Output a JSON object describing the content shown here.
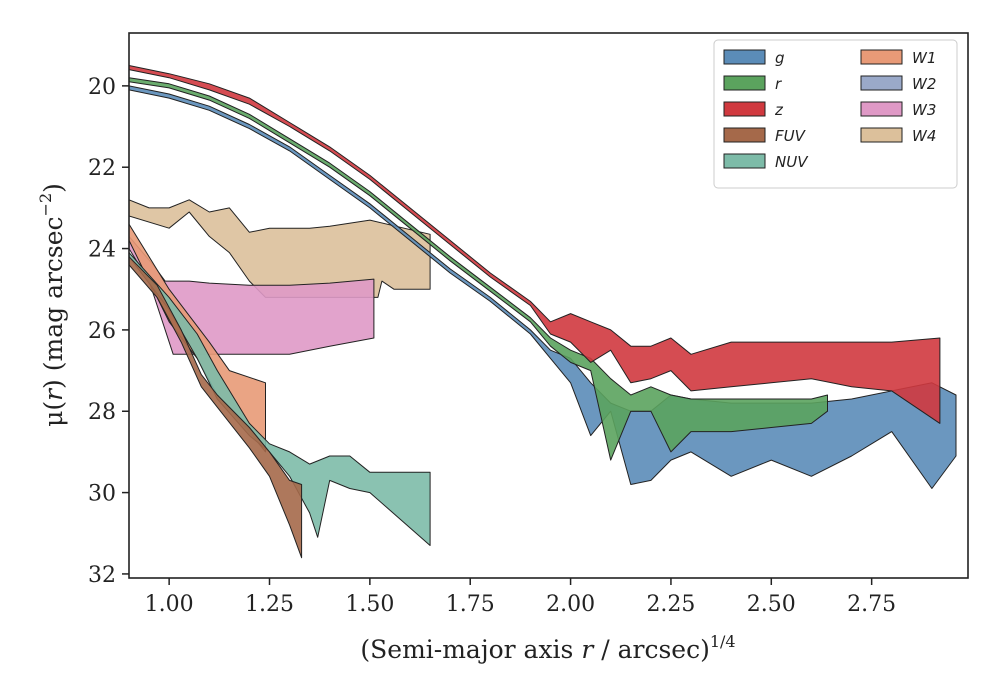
{
  "chart_data": {
    "type": "area",
    "title": "",
    "xlabel": {
      "pre": "(Semi-major axis ",
      "var": "r",
      "post": " / arcsec)",
      "sup": "1/4"
    },
    "ylabel": {
      "pre": "μ(",
      "var": "r",
      "post": ") (mag arcsec",
      "sup": "−2",
      "close": ")"
    },
    "xlim": [
      0.9,
      2.99
    ],
    "ylim": [
      32.1,
      18.7
    ],
    "y_inverted": true,
    "grid": false,
    "legend_position": "top-right",
    "legend_columns": 2,
    "x_ticks": [
      1.0,
      1.25,
      1.5,
      1.75,
      2.0,
      2.25,
      2.5,
      2.75
    ],
    "x_tick_labels": [
      "1.00",
      "1.25",
      "1.50",
      "1.75",
      "2.00",
      "2.25",
      "2.50",
      "2.75"
    ],
    "y_ticks": [
      20,
      22,
      24,
      26,
      28,
      30,
      32
    ],
    "y_tick_labels": [
      "20",
      "22",
      "24",
      "26",
      "28",
      "30",
      "32"
    ],
    "series": [
      {
        "name": "W4",
        "color": "#dcc09b",
        "upper": [
          [
            0.9,
            22.8
          ],
          [
            0.95,
            23.0
          ],
          [
            1.0,
            23.0
          ],
          [
            1.05,
            22.8
          ],
          [
            1.1,
            23.1
          ],
          [
            1.15,
            23.0
          ],
          [
            1.2,
            23.6
          ],
          [
            1.25,
            23.5
          ],
          [
            1.3,
            23.5
          ],
          [
            1.35,
            23.5
          ],
          [
            1.4,
            23.45
          ],
          [
            1.5,
            23.3
          ],
          [
            1.65,
            23.65
          ]
        ],
        "lower": [
          [
            0.9,
            23.2
          ],
          [
            1.0,
            23.5
          ],
          [
            1.05,
            23.1
          ],
          [
            1.1,
            23.7
          ],
          [
            1.15,
            24.1
          ],
          [
            1.2,
            24.8
          ],
          [
            1.24,
            25.2
          ],
          [
            1.3,
            25.2
          ],
          [
            1.35,
            25.2
          ],
          [
            1.4,
            25.2
          ],
          [
            1.48,
            25.2
          ],
          [
            1.52,
            25.2
          ],
          [
            1.53,
            24.8
          ],
          [
            1.56,
            25.0
          ],
          [
            1.65,
            25.0
          ]
        ]
      },
      {
        "name": "W3",
        "color": "#df99c6",
        "upper": [
          [
            0.9,
            23.7
          ],
          [
            0.96,
            24.4
          ],
          [
            0.99,
            24.8
          ],
          [
            1.05,
            24.8
          ],
          [
            1.1,
            24.85
          ],
          [
            1.2,
            24.9
          ],
          [
            1.3,
            24.9
          ],
          [
            1.4,
            24.85
          ],
          [
            1.51,
            24.75
          ]
        ],
        "lower": [
          [
            0.9,
            24.0
          ],
          [
            0.95,
            24.8
          ],
          [
            1.01,
            26.6
          ],
          [
            1.1,
            26.6
          ],
          [
            1.2,
            26.6
          ],
          [
            1.3,
            26.6
          ],
          [
            1.4,
            26.4
          ],
          [
            1.51,
            26.2
          ]
        ]
      },
      {
        "name": "W1",
        "color": "#e89a77",
        "upper": [
          [
            0.9,
            23.4
          ],
          [
            1.0,
            25.0
          ],
          [
            1.1,
            26.3
          ],
          [
            1.15,
            27.0
          ],
          [
            1.24,
            27.3
          ]
        ],
        "lower": [
          [
            0.9,
            23.8
          ],
          [
            1.0,
            25.8
          ],
          [
            1.07,
            26.7
          ],
          [
            1.12,
            27.6
          ],
          [
            1.2,
            28.5
          ],
          [
            1.24,
            29.0
          ]
        ]
      },
      {
        "name": "NUV",
        "color": "#7dbba8",
        "upper": [
          [
            0.9,
            24.1
          ],
          [
            1.0,
            25.2
          ],
          [
            1.07,
            26.1
          ],
          [
            1.12,
            27.0
          ],
          [
            1.2,
            28.3
          ],
          [
            1.25,
            28.8
          ],
          [
            1.3,
            29.0
          ],
          [
            1.35,
            29.3
          ],
          [
            1.4,
            29.1
          ],
          [
            1.45,
            29.1
          ],
          [
            1.5,
            29.5
          ],
          [
            1.65,
            29.5
          ]
        ],
        "lower": [
          [
            0.9,
            24.2
          ],
          [
            1.0,
            25.5
          ],
          [
            1.07,
            26.7
          ],
          [
            1.12,
            27.7
          ],
          [
            1.2,
            28.6
          ],
          [
            1.25,
            29.0
          ],
          [
            1.3,
            29.6
          ],
          [
            1.35,
            30.5
          ],
          [
            1.37,
            31.1
          ],
          [
            1.4,
            29.7
          ],
          [
            1.45,
            29.9
          ],
          [
            1.5,
            30.0
          ],
          [
            1.65,
            31.3
          ]
        ]
      },
      {
        "name": "FUV",
        "color": "#a5694a",
        "upper": [
          [
            0.9,
            24.2
          ],
          [
            0.97,
            24.9
          ],
          [
            1.03,
            26.0
          ],
          [
            1.08,
            27.1
          ],
          [
            1.12,
            27.6
          ],
          [
            1.2,
            28.4
          ],
          [
            1.25,
            29.0
          ],
          [
            1.3,
            29.7
          ],
          [
            1.33,
            29.8
          ]
        ],
        "lower": [
          [
            0.9,
            24.4
          ],
          [
            0.97,
            25.2
          ],
          [
            1.03,
            26.3
          ],
          [
            1.08,
            27.4
          ],
          [
            1.12,
            27.9
          ],
          [
            1.2,
            28.9
          ],
          [
            1.25,
            29.6
          ],
          [
            1.3,
            30.8
          ],
          [
            1.33,
            31.6
          ]
        ]
      },
      {
        "name": "g",
        "color": "#5b8cb8",
        "upper": [
          [
            0.9,
            20.0
          ],
          [
            1.0,
            20.2
          ],
          [
            1.1,
            20.5
          ],
          [
            1.2,
            20.95
          ],
          [
            1.3,
            21.5
          ],
          [
            1.4,
            22.2
          ],
          [
            1.5,
            22.9
          ],
          [
            1.6,
            23.7
          ],
          [
            1.7,
            24.5
          ],
          [
            1.8,
            25.2
          ],
          [
            1.9,
            26.0
          ],
          [
            1.95,
            26.5
          ],
          [
            2.0,
            26.7
          ],
          [
            2.05,
            27.3
          ],
          [
            2.1,
            27.8
          ],
          [
            2.15,
            28.0
          ],
          [
            2.2,
            28.0
          ],
          [
            2.25,
            27.6
          ],
          [
            2.3,
            27.7
          ],
          [
            2.4,
            27.8
          ],
          [
            2.5,
            27.8
          ],
          [
            2.6,
            27.8
          ],
          [
            2.7,
            27.7
          ],
          [
            2.8,
            27.5
          ],
          [
            2.9,
            27.3
          ],
          [
            2.96,
            27.6
          ]
        ],
        "lower": [
          [
            0.9,
            20.1
          ],
          [
            1.0,
            20.3
          ],
          [
            1.1,
            20.6
          ],
          [
            1.2,
            21.05
          ],
          [
            1.3,
            21.6
          ],
          [
            1.4,
            22.3
          ],
          [
            1.5,
            23.0
          ],
          [
            1.6,
            23.8
          ],
          [
            1.7,
            24.6
          ],
          [
            1.8,
            25.3
          ],
          [
            1.9,
            26.1
          ],
          [
            1.95,
            26.7
          ],
          [
            2.0,
            27.3
          ],
          [
            2.05,
            28.6
          ],
          [
            2.1,
            28.0
          ],
          [
            2.15,
            29.8
          ],
          [
            2.2,
            29.7
          ],
          [
            2.25,
            29.2
          ],
          [
            2.3,
            29.0
          ],
          [
            2.4,
            29.6
          ],
          [
            2.5,
            29.2
          ],
          [
            2.6,
            29.6
          ],
          [
            2.7,
            29.1
          ],
          [
            2.8,
            28.5
          ],
          [
            2.9,
            29.9
          ],
          [
            2.96,
            29.1
          ]
        ]
      },
      {
        "name": "r",
        "color": "#5ba35e",
        "upper": [
          [
            0.9,
            19.8
          ],
          [
            1.0,
            19.95
          ],
          [
            1.1,
            20.25
          ],
          [
            1.2,
            20.7
          ],
          [
            1.3,
            21.3
          ],
          [
            1.4,
            21.9
          ],
          [
            1.5,
            22.6
          ],
          [
            1.6,
            23.4
          ],
          [
            1.7,
            24.2
          ],
          [
            1.8,
            24.95
          ],
          [
            1.9,
            25.7
          ],
          [
            1.95,
            26.2
          ],
          [
            2.0,
            26.5
          ],
          [
            2.05,
            26.7
          ],
          [
            2.1,
            27.2
          ],
          [
            2.15,
            27.6
          ],
          [
            2.2,
            27.4
          ],
          [
            2.25,
            27.6
          ],
          [
            2.3,
            27.7
          ],
          [
            2.4,
            27.7
          ],
          [
            2.5,
            27.7
          ],
          [
            2.6,
            27.7
          ],
          [
            2.64,
            27.6
          ]
        ],
        "lower": [
          [
            0.9,
            19.9
          ],
          [
            1.0,
            20.05
          ],
          [
            1.1,
            20.35
          ],
          [
            1.2,
            20.8
          ],
          [
            1.3,
            21.4
          ],
          [
            1.4,
            22.0
          ],
          [
            1.5,
            22.7
          ],
          [
            1.6,
            23.5
          ],
          [
            1.7,
            24.3
          ],
          [
            1.8,
            25.05
          ],
          [
            1.9,
            25.8
          ],
          [
            1.95,
            26.4
          ],
          [
            2.0,
            26.8
          ],
          [
            2.05,
            27.0
          ],
          [
            2.1,
            29.2
          ],
          [
            2.15,
            28.0
          ],
          [
            2.2,
            28.0
          ],
          [
            2.25,
            29.0
          ],
          [
            2.3,
            28.5
          ],
          [
            2.4,
            28.5
          ],
          [
            2.5,
            28.4
          ],
          [
            2.6,
            28.3
          ],
          [
            2.64,
            28.0
          ]
        ]
      },
      {
        "name": "z",
        "color": "#d0393f",
        "upper": [
          [
            0.9,
            19.5
          ],
          [
            1.0,
            19.7
          ],
          [
            1.1,
            19.95
          ],
          [
            1.2,
            20.3
          ],
          [
            1.3,
            20.9
          ],
          [
            1.4,
            21.5
          ],
          [
            1.5,
            22.2
          ],
          [
            1.6,
            23.0
          ],
          [
            1.7,
            23.8
          ],
          [
            1.8,
            24.6
          ],
          [
            1.9,
            25.3
          ],
          [
            1.95,
            25.8
          ],
          [
            2.0,
            25.6
          ],
          [
            2.05,
            25.8
          ],
          [
            2.1,
            26.0
          ],
          [
            2.15,
            26.4
          ],
          [
            2.2,
            26.4
          ],
          [
            2.25,
            26.2
          ],
          [
            2.3,
            26.6
          ],
          [
            2.4,
            26.3
          ],
          [
            2.5,
            26.3
          ],
          [
            2.6,
            26.3
          ],
          [
            2.7,
            26.3
          ],
          [
            2.8,
            26.3
          ],
          [
            2.92,
            26.2
          ]
        ],
        "lower": [
          [
            0.9,
            19.6
          ],
          [
            1.0,
            19.8
          ],
          [
            1.1,
            20.1
          ],
          [
            1.2,
            20.45
          ],
          [
            1.3,
            21.0
          ],
          [
            1.4,
            21.6
          ],
          [
            1.5,
            22.3
          ],
          [
            1.6,
            23.1
          ],
          [
            1.7,
            23.9
          ],
          [
            1.8,
            24.7
          ],
          [
            1.9,
            25.4
          ],
          [
            1.95,
            26.1
          ],
          [
            2.0,
            26.3
          ],
          [
            2.05,
            26.8
          ],
          [
            2.1,
            26.5
          ],
          [
            2.15,
            27.3
          ],
          [
            2.2,
            27.2
          ],
          [
            2.25,
            27.0
          ],
          [
            2.3,
            27.5
          ],
          [
            2.4,
            27.4
          ],
          [
            2.5,
            27.3
          ],
          [
            2.6,
            27.2
          ],
          [
            2.7,
            27.4
          ],
          [
            2.8,
            27.5
          ],
          [
            2.92,
            28.3
          ]
        ]
      },
      {
        "name": "W2",
        "color": "#9aa9c9",
        "upper": [],
        "lower": []
      }
    ],
    "legend_order": [
      "g",
      "r",
      "z",
      "FUV",
      "NUV",
      "W1",
      "W2",
      "W3",
      "W4"
    ]
  }
}
